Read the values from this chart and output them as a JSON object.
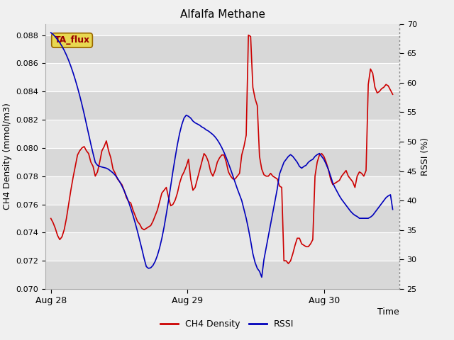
{
  "title": "Alfalfa Methane",
  "ylabel_left": "CH4 Density (mmol/m3)",
  "ylabel_right": "RSSI (%)",
  "xlabel": "Time",
  "ylim_left": [
    0.07,
    0.0888
  ],
  "ylim_right": [
    25,
    70
  ],
  "yticks_left": [
    0.07,
    0.072,
    0.074,
    0.076,
    0.078,
    0.08,
    0.082,
    0.084,
    0.086,
    0.088
  ],
  "yticks_right": [
    25,
    30,
    35,
    40,
    45,
    50,
    55,
    60,
    65,
    70
  ],
  "xtick_positions": [
    0,
    1.0,
    2.0
  ],
  "xtick_labels": [
    "Aug 28",
    "Aug 29",
    "Aug 30"
  ],
  "xlim": [
    -0.04,
    2.55
  ],
  "figure_bg": "#f0f0f0",
  "axes_bg": "#e8e8e8",
  "band_color_dark": "#d8d8d8",
  "ch4_color": "#cc0000",
  "rssi_color": "#0000bb",
  "legend_ch4": "CH4 Density",
  "legend_rssi": "RSSI",
  "annotation_text": "TA_flux",
  "annotation_bg": "#e8d850",
  "annotation_border": "#996600",
  "annotation_text_color": "#990000",
  "ch4_data": [
    0.075,
    0.0747,
    0.0743,
    0.0738,
    0.0735,
    0.0737,
    0.0742,
    0.075,
    0.076,
    0.077,
    0.0779,
    0.0787,
    0.0795,
    0.0798,
    0.08,
    0.0801,
    0.0798,
    0.0796,
    0.079,
    0.0787,
    0.078,
    0.0783,
    0.079,
    0.0798,
    0.0801,
    0.0805,
    0.0798,
    0.0793,
    0.0785,
    0.0782,
    0.0778,
    0.0776,
    0.0774,
    0.077,
    0.0765,
    0.0762,
    0.0761,
    0.0756,
    0.0752,
    0.0748,
    0.0746,
    0.0743,
    0.0742,
    0.0743,
    0.0744,
    0.0745,
    0.0748,
    0.0752,
    0.0756,
    0.0762,
    0.0768,
    0.077,
    0.0772,
    0.0765,
    0.0759,
    0.076,
    0.0763,
    0.0768,
    0.0775,
    0.078,
    0.0783,
    0.0787,
    0.0792,
    0.0778,
    0.077,
    0.0772,
    0.0778,
    0.0784,
    0.079,
    0.0796,
    0.0794,
    0.079,
    0.0783,
    0.078,
    0.0784,
    0.079,
    0.0793,
    0.0795,
    0.0795,
    0.079,
    0.0783,
    0.078,
    0.0778,
    0.0778,
    0.078,
    0.0782,
    0.0795,
    0.0801,
    0.0809,
    0.088,
    0.0879,
    0.0843,
    0.0835,
    0.083,
    0.0794,
    0.0785,
    0.0781,
    0.078,
    0.078,
    0.0782,
    0.078,
    0.0779,
    0.0778,
    0.0773,
    0.0772,
    0.072,
    0.072,
    0.0718,
    0.072,
    0.0725,
    0.0731,
    0.0736,
    0.0736,
    0.0732,
    0.0731,
    0.073,
    0.073,
    0.0732,
    0.0735,
    0.078,
    0.079,
    0.0795,
    0.0796,
    0.0794,
    0.079,
    0.0785,
    0.0778,
    0.0774,
    0.0775,
    0.0776,
    0.0777,
    0.078,
    0.0782,
    0.0784,
    0.078,
    0.0778,
    0.0776,
    0.0772,
    0.078,
    0.0783,
    0.0782,
    0.078,
    0.0784,
    0.0845,
    0.0856,
    0.0853,
    0.0843,
    0.0839,
    0.084,
    0.0842,
    0.0843,
    0.0845,
    0.0844,
    0.0841,
    0.0838
  ],
  "rssi_data": [
    68.5,
    68.2,
    67.8,
    67.3,
    66.8,
    66.2,
    65.5,
    64.7,
    63.8,
    62.8,
    61.7,
    60.5,
    59.2,
    57.8,
    56.3,
    54.7,
    53.0,
    51.3,
    49.6,
    48.0,
    46.5,
    46.0,
    45.8,
    45.7,
    45.6,
    45.5,
    45.3,
    45.0,
    44.7,
    44.3,
    43.8,
    43.2,
    42.5,
    41.7,
    40.8,
    39.8,
    38.7,
    37.5,
    36.2,
    34.8,
    33.3,
    31.8,
    30.2,
    28.8,
    28.5,
    28.6,
    29.0,
    29.7,
    30.7,
    32.0,
    33.6,
    35.5,
    37.7,
    40.0,
    42.5,
    45.0,
    47.3,
    49.5,
    51.4,
    52.9,
    54.0,
    54.5,
    54.3,
    54.0,
    53.5,
    53.2,
    53.0,
    52.8,
    52.5,
    52.3,
    52.0,
    51.8,
    51.5,
    51.2,
    50.8,
    50.3,
    49.7,
    49.0,
    48.2,
    47.3,
    46.3,
    45.3,
    44.2,
    43.1,
    42.0,
    41.0,
    40.0,
    38.5,
    37.0,
    35.2,
    33.2,
    31.0,
    29.5,
    28.5,
    28.0,
    27.0,
    30.0,
    32.0,
    34.0,
    36.0,
    38.0,
    40.0,
    42.0,
    44.5,
    45.5,
    46.5,
    47.0,
    47.5,
    47.8,
    47.5,
    47.0,
    46.5,
    45.8,
    45.5,
    45.8,
    46.0,
    46.5,
    46.8,
    47.0,
    47.5,
    47.8,
    48.0,
    47.5,
    47.0,
    46.2,
    45.3,
    44.2,
    43.0,
    42.2,
    41.5,
    40.8,
    40.2,
    39.7,
    39.2,
    38.7,
    38.2,
    37.8,
    37.5,
    37.3,
    37.0,
    37.0,
    37.0,
    37.0,
    37.0,
    37.2,
    37.5,
    38.0,
    38.5,
    39.0,
    39.5,
    40.0,
    40.5,
    40.8,
    41.0,
    38.5
  ]
}
